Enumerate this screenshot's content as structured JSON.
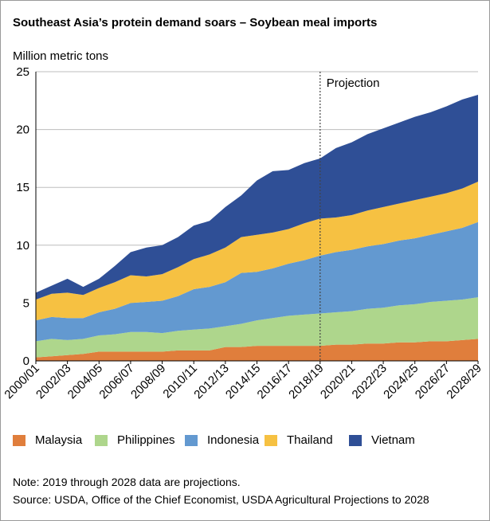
{
  "chart_data": {
    "type": "area",
    "stacked": true,
    "title": "Southeast Asia’s protein demand soars – Soybean meal imports",
    "ylabel": "Million metric tons",
    "xlabel": "",
    "ylim": [
      0,
      25
    ],
    "yticks": [
      0,
      5,
      10,
      15,
      20,
      25
    ],
    "grid": "y",
    "categories": [
      "2000/01",
      "2001/02",
      "2002/03",
      "2003/04",
      "2004/05",
      "2005/06",
      "2006/07",
      "2007/08",
      "2008/09",
      "2009/10",
      "2010/11",
      "2011/12",
      "2012/13",
      "2013/14",
      "2014/15",
      "2015/16",
      "2016/17",
      "2017/18",
      "2018/19",
      "2019/20",
      "2020/21",
      "2021/22",
      "2022/23",
      "2023/24",
      "2024/25",
      "2025/26",
      "2026/27",
      "2027/28",
      "2028/29"
    ],
    "tick_labels": [
      "2000/01",
      "2002/03",
      "2004/05",
      "2006/07",
      "2008/09",
      "2010/11",
      "2012/13",
      "2014/15",
      "2016/17",
      "2018/19",
      "2020/21",
      "2022/23",
      "2024/25",
      "2026/27",
      "2028/29"
    ],
    "annotation": {
      "label": "Projection",
      "at": "2018/19"
    },
    "series": [
      {
        "name": "Malaysia",
        "color": "#e07e3c",
        "values": [
          0.3,
          0.4,
          0.5,
          0.6,
          0.8,
          0.8,
          0.8,
          0.8,
          0.8,
          0.9,
          0.9,
          0.9,
          1.2,
          1.2,
          1.3,
          1.3,
          1.3,
          1.3,
          1.3,
          1.4,
          1.4,
          1.5,
          1.5,
          1.6,
          1.6,
          1.7,
          1.7,
          1.8,
          1.9
        ]
      },
      {
        "name": "Philippines",
        "color": "#aed68c",
        "values": [
          1.4,
          1.5,
          1.3,
          1.3,
          1.4,
          1.5,
          1.7,
          1.7,
          1.6,
          1.7,
          1.8,
          1.9,
          1.8,
          2.0,
          2.2,
          2.4,
          2.6,
          2.7,
          2.8,
          2.8,
          2.9,
          3.0,
          3.1,
          3.2,
          3.3,
          3.4,
          3.5,
          3.5,
          3.6
        ]
      },
      {
        "name": "Indonesia",
        "color": "#6399d0",
        "values": [
          1.8,
          1.9,
          1.9,
          1.8,
          2.0,
          2.2,
          2.5,
          2.6,
          2.8,
          3.0,
          3.5,
          3.6,
          3.8,
          4.4,
          4.2,
          4.3,
          4.5,
          4.7,
          5.0,
          5.2,
          5.3,
          5.4,
          5.5,
          5.6,
          5.7,
          5.8,
          6.0,
          6.2,
          6.5
        ]
      },
      {
        "name": "Thailand",
        "color": "#f6c142",
        "values": [
          1.8,
          2.0,
          2.2,
          2.0,
          2.1,
          2.3,
          2.4,
          2.2,
          2.3,
          2.5,
          2.6,
          2.8,
          3.0,
          3.1,
          3.2,
          3.1,
          3.0,
          3.2,
          3.2,
          3.0,
          3.0,
          3.1,
          3.2,
          3.2,
          3.3,
          3.3,
          3.3,
          3.4,
          3.5
        ]
      },
      {
        "name": "Vietnam",
        "color": "#2f4f96",
        "values": [
          0.6,
          0.7,
          1.2,
          0.7,
          0.8,
          1.4,
          2.0,
          2.5,
          2.5,
          2.6,
          2.9,
          2.9,
          3.5,
          3.6,
          4.7,
          5.3,
          5.1,
          5.2,
          5.2,
          6.0,
          6.3,
          6.6,
          6.8,
          7.0,
          7.2,
          7.3,
          7.5,
          7.7,
          7.5
        ]
      }
    ],
    "legend_position": "bottom"
  },
  "notes": {
    "note": "Note: 2019 through 2028 data are projections.",
    "source": "Source: USDA, Office of the Chief Economist, USDA Agricultural Projections to 2028"
  }
}
